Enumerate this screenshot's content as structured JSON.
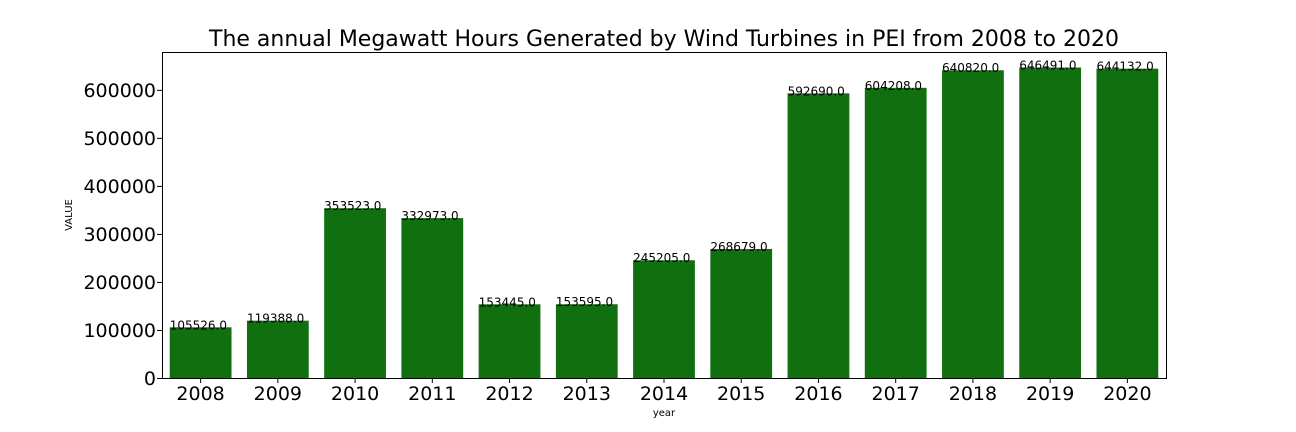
{
  "chart_data": {
    "type": "bar",
    "title": "The annual Megawatt Hours Generated by Wind Turbines in PEI from 2008 to 2020",
    "xlabel": "year",
    "ylabel": "VALUE",
    "categories": [
      "2008",
      "2009",
      "2010",
      "2011",
      "2012",
      "2013",
      "2014",
      "2015",
      "2016",
      "2017",
      "2018",
      "2019",
      "2020"
    ],
    "values": [
      105526.0,
      119388.0,
      353523.0,
      332973.0,
      153445.0,
      153595.0,
      245205.0,
      268679.0,
      592690.0,
      604208.0,
      640820.0,
      646491.0,
      644132.0
    ],
    "data_labels": [
      "105526.0",
      "119388.0",
      "353523.0",
      "332973.0",
      "153445.0",
      "153595.0",
      "245205.0",
      "268679.0",
      "592690.0",
      "604208.0",
      "640820.0",
      "646491.0",
      "644132.0"
    ],
    "y_ticks": [
      0,
      100000,
      200000,
      300000,
      400000,
      500000,
      600000
    ],
    "ylim": [
      0,
      678816
    ],
    "grid": false,
    "legend": "none",
    "bar_color": "#107010"
  }
}
